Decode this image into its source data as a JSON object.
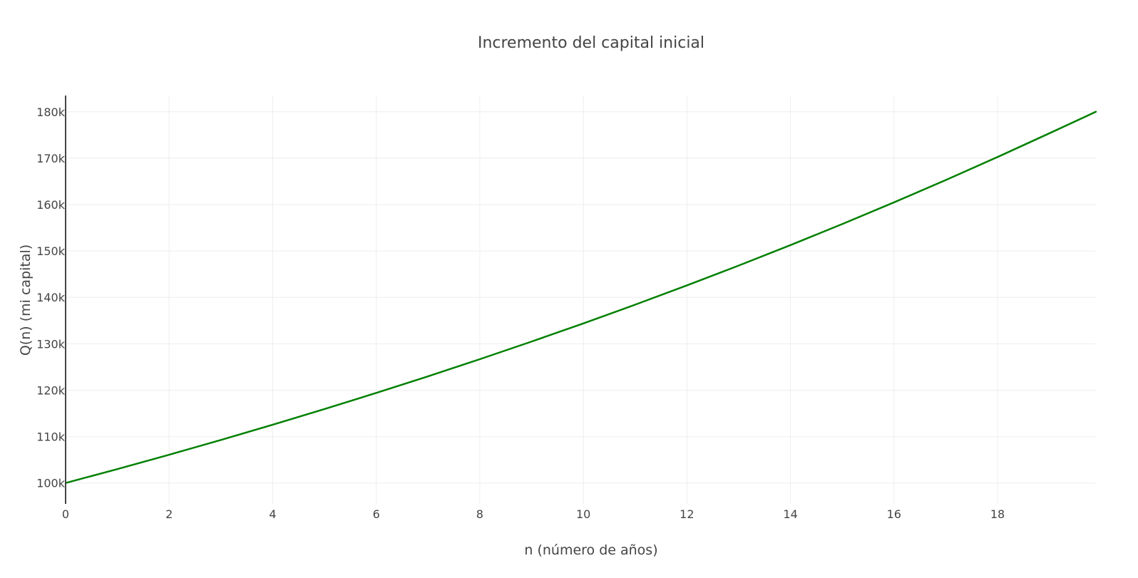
{
  "chart_data": {
    "type": "line",
    "title": "Incremento del capital inicial",
    "xlabel": "n (número de años)",
    "ylabel": "Q(n) (mi capital)",
    "xlim": [
      0,
      19.9
    ],
    "ylim": [
      95500,
      183500
    ],
    "x_ticks": [
      0,
      2,
      4,
      6,
      8,
      10,
      12,
      14,
      16,
      18
    ],
    "x_tick_labels": [
      "0",
      "2",
      "4",
      "6",
      "8",
      "10",
      "12",
      "14",
      "16",
      "18"
    ],
    "y_ticks": [
      100000,
      110000,
      120000,
      130000,
      140000,
      150000,
      160000,
      170000,
      180000
    ],
    "y_tick_labels": [
      "100k",
      "110k",
      "120k",
      "130k",
      "140k",
      "150k",
      "160k",
      "170k",
      "180k"
    ],
    "grid": true,
    "series": [
      {
        "color": "#008000",
        "x": [
          0,
          1,
          2,
          3,
          4,
          5,
          6,
          7,
          8,
          9,
          10,
          11,
          12,
          13,
          14,
          15,
          16,
          17,
          18,
          19,
          19.9
        ],
        "y": [
          100000,
          103000,
          106090,
          109273,
          112551,
          115927,
          119405,
          122987,
          126677,
          130477,
          134392,
          138423,
          142576,
          146853,
          151259,
          155797,
          160471,
          165285,
          170243,
          175351,
          180000
        ]
      }
    ]
  }
}
